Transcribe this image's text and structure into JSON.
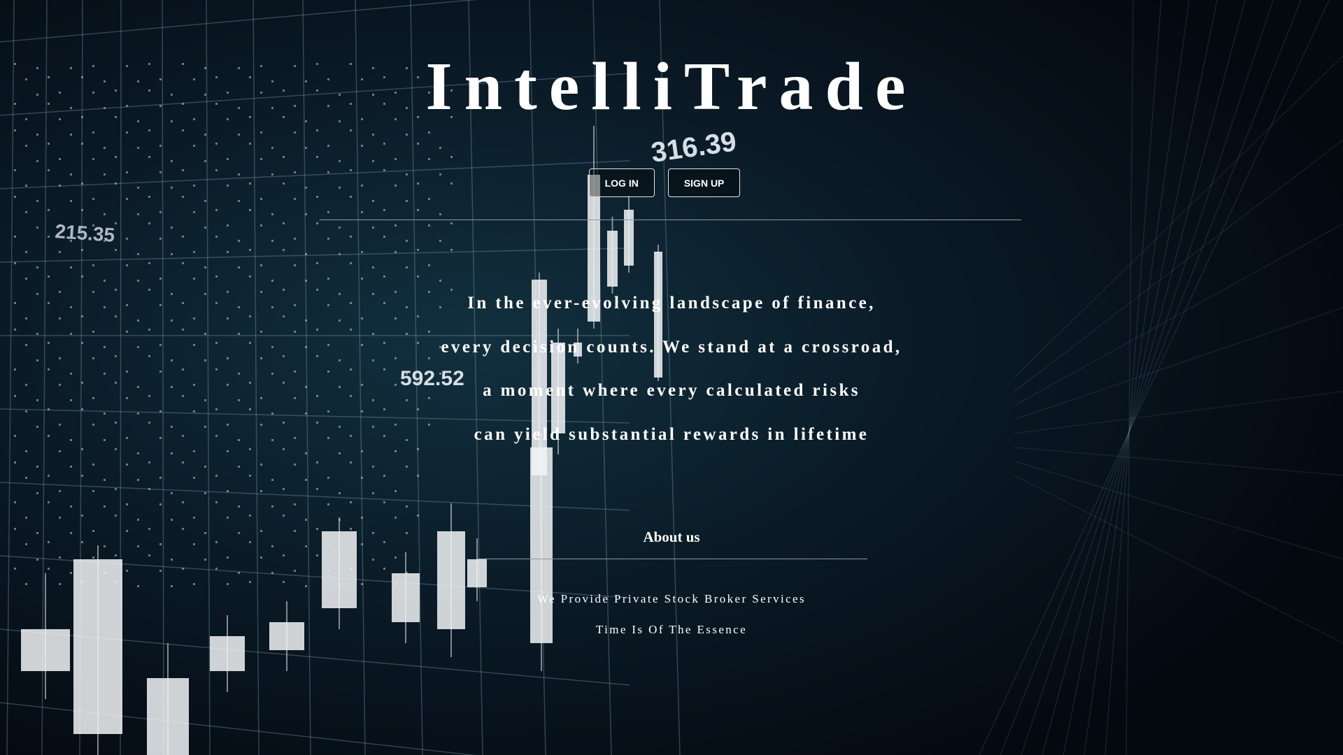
{
  "header": {
    "title": "IntelliTrade",
    "buttons": [
      "LOG IN",
      "SIGN UP"
    ]
  },
  "hero": {
    "lines": [
      "In the ever-evolving landscape of finance,",
      "every decision counts. We stand at a crossroad,",
      "a moment where every calculated risks",
      "can yield substantial rewards in lifetime"
    ]
  },
  "about": {
    "heading": "About us",
    "lines": [
      "We Provide Private Stock Broker Services",
      "Time Is Of The Essence"
    ]
  },
  "background": {
    "labels": [
      "316.39",
      "215.35",
      "592.52"
    ]
  }
}
